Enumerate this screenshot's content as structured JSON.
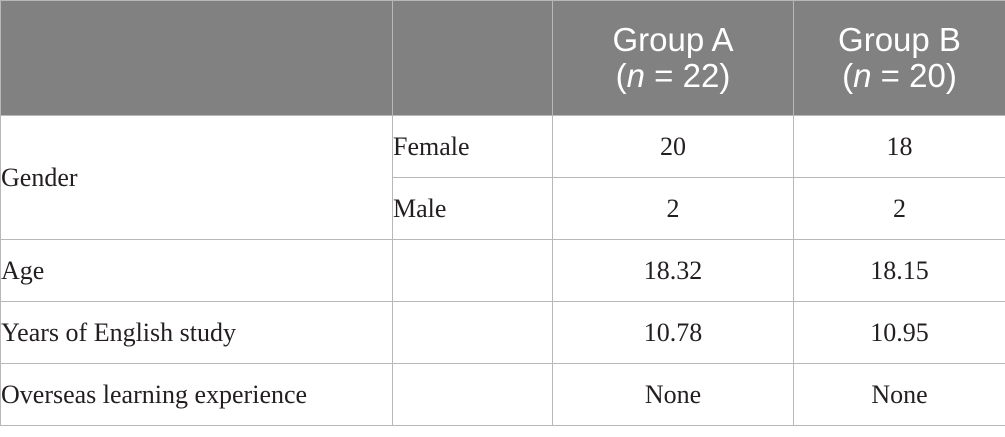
{
  "header": {
    "group_a": {
      "name": "Group A",
      "open": "(",
      "n_symbol": "n",
      "n_rest": " = 22)"
    },
    "group_b": {
      "name": "Group B",
      "open": "(",
      "n_symbol": "n",
      "n_rest": " = 20)"
    }
  },
  "rows": {
    "gender": {
      "label": "Gender",
      "female": {
        "label": "Female",
        "group_a": "20",
        "group_b": "18"
      },
      "male": {
        "label": "Male",
        "group_a": "2",
        "group_b": "2"
      }
    },
    "age": {
      "label": "Age",
      "group_a": "18.32",
      "group_b": "18.15"
    },
    "years_english": {
      "label": "Years of English study",
      "group_a": "10.78",
      "group_b": "10.95"
    },
    "overseas": {
      "label": "Overseas learning experience",
      "group_a": "None",
      "group_b": "None"
    }
  },
  "colors": {
    "header_bg": "#818181",
    "border": "#b8b8b8",
    "text": "#231f20"
  }
}
